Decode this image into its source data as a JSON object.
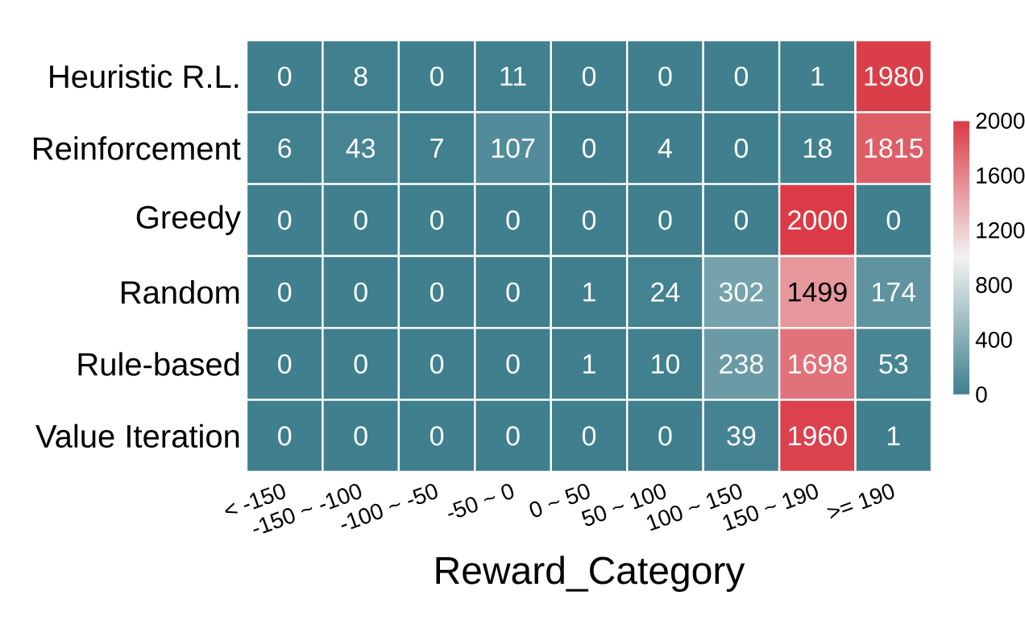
{
  "chart_data": {
    "type": "heatmap",
    "xlabel": "Reward_Category",
    "categories": [
      "< -150",
      "-150 ~ -100",
      "-100 ~ -50",
      "-50 ~ 0",
      "0 ~ 50",
      "50 ~ 100",
      "100 ~ 150",
      "150 ~ 190",
      ">= 190"
    ],
    "y_categories": [
      "Heuristic R.L.",
      "Reinforcement",
      "Greedy",
      "Random",
      "Rule-based",
      "Value Iteration"
    ],
    "cells": [
      [
        0,
        8,
        0,
        11,
        0,
        0,
        0,
        1,
        1980
      ],
      [
        6,
        43,
        7,
        107,
        0,
        4,
        0,
        18,
        1815
      ],
      [
        0,
        0,
        0,
        0,
        0,
        0,
        0,
        2000,
        0
      ],
      [
        0,
        0,
        0,
        0,
        1,
        24,
        302,
        1499,
        174
      ],
      [
        0,
        0,
        0,
        0,
        1,
        10,
        238,
        1698,
        53
      ],
      [
        0,
        0,
        0,
        0,
        0,
        0,
        39,
        1960,
        1
      ]
    ],
    "clim": [
      0,
      2000
    ],
    "cticks": [
      0,
      400,
      800,
      1200,
      1600,
      2000
    ],
    "data_labels": true
  }
}
